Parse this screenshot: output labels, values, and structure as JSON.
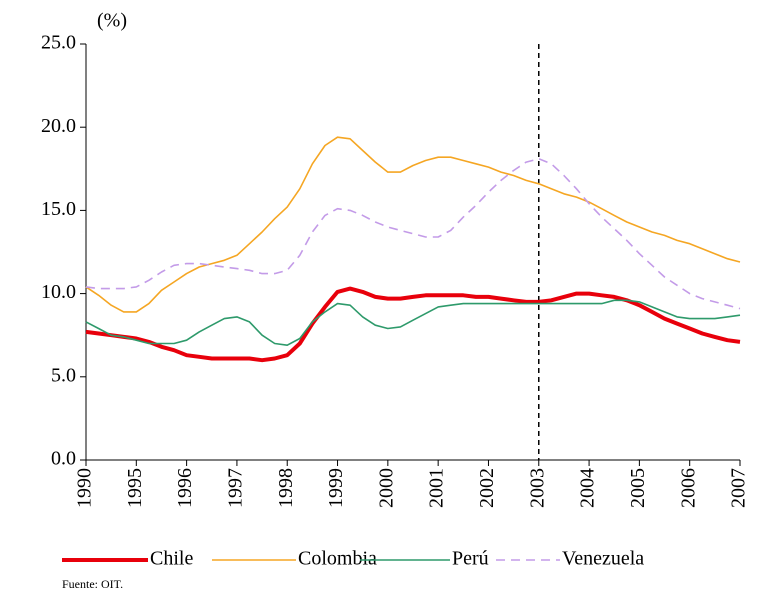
{
  "chart_data": {
    "type": "line",
    "y_label": "(%)",
    "source": "Fuente: OIT.",
    "categories": [
      "1990",
      null,
      null,
      null,
      "1995",
      null,
      null,
      null,
      "1996",
      null,
      null,
      null,
      "1997",
      null,
      null,
      null,
      "1998",
      null,
      null,
      null,
      "1999",
      null,
      null,
      null,
      "2000",
      null,
      null,
      null,
      "2001",
      null,
      null,
      null,
      "2002",
      null,
      null,
      null,
      "2003",
      null,
      null,
      null,
      "2004",
      null,
      null,
      null,
      "2005",
      null,
      null,
      null,
      "2006",
      null,
      null,
      null,
      "2007"
    ],
    "series": [
      {
        "name": "Chile",
        "color": "#e8000b",
        "width": 4,
        "dash": false,
        "values": [
          7.7,
          7.6,
          7.5,
          7.4,
          7.3,
          7.1,
          6.8,
          6.6,
          6.3,
          6.2,
          6.1,
          6.1,
          6.1,
          6.1,
          6.0,
          6.1,
          6.3,
          7.0,
          8.2,
          9.2,
          10.1,
          10.3,
          10.1,
          9.8,
          9.7,
          9.7,
          9.8,
          9.9,
          9.9,
          9.9,
          9.9,
          9.8,
          9.8,
          9.7,
          9.6,
          9.5,
          9.5,
          9.6,
          9.8,
          10.0,
          10.0,
          9.9,
          9.8,
          9.6,
          9.3,
          8.9,
          8.5,
          8.2,
          7.9,
          7.6,
          7.4,
          7.2,
          7.1
        ]
      },
      {
        "name": "Colombia",
        "color": "#f5a623",
        "width": 1.6,
        "dash": false,
        "values": [
          10.4,
          9.9,
          9.3,
          8.9,
          8.9,
          9.4,
          10.2,
          10.7,
          11.2,
          11.6,
          11.8,
          12.0,
          12.3,
          13.0,
          13.7,
          14.5,
          15.2,
          16.3,
          17.8,
          18.9,
          19.4,
          19.3,
          18.6,
          17.9,
          17.3,
          17.3,
          17.7,
          18.0,
          18.2,
          18.2,
          18.0,
          17.8,
          17.6,
          17.3,
          17.1,
          16.8,
          16.6,
          16.3,
          16.0,
          15.8,
          15.5,
          15.1,
          14.7,
          14.3,
          14.0,
          13.7,
          13.5,
          13.2,
          13.0,
          12.7,
          12.4,
          12.1,
          11.9
        ]
      },
      {
        "name": "Perú",
        "color": "#2e9a6b",
        "width": 1.6,
        "dash": false,
        "values": [
          8.3,
          7.9,
          7.5,
          7.4,
          7.2,
          7.0,
          7.0,
          7.0,
          7.2,
          7.7,
          8.1,
          8.5,
          8.6,
          8.3,
          7.5,
          7.0,
          6.9,
          7.3,
          8.3,
          8.9,
          9.4,
          9.3,
          8.6,
          8.1,
          7.9,
          8.0,
          8.4,
          8.8,
          9.2,
          9.3,
          9.4,
          9.4,
          9.4,
          9.4,
          9.4,
          9.4,
          9.4,
          9.4,
          9.4,
          9.4,
          9.4,
          9.4,
          9.6,
          9.6,
          9.5,
          9.2,
          8.9,
          8.6,
          8.5,
          8.5,
          8.5,
          8.6,
          8.7
        ]
      },
      {
        "name": "Venezuela",
        "color": "#c39be8",
        "width": 1.6,
        "dash": true,
        "values": [
          10.4,
          10.3,
          10.3,
          10.3,
          10.4,
          10.8,
          11.3,
          11.7,
          11.8,
          11.8,
          11.7,
          11.6,
          11.5,
          11.4,
          11.2,
          11.2,
          11.4,
          12.3,
          13.7,
          14.7,
          15.1,
          15.0,
          14.7,
          14.3,
          14.0,
          13.8,
          13.6,
          13.4,
          13.4,
          13.8,
          14.6,
          15.3,
          16.1,
          16.8,
          17.4,
          17.9,
          18.1,
          17.8,
          17.1,
          16.3,
          15.4,
          14.6,
          13.9,
          13.2,
          12.4,
          11.7,
          11.0,
          10.5,
          10.0,
          9.7,
          9.5,
          9.3,
          9.1
        ]
      }
    ],
    "vline": "2003",
    "ylim": [
      0,
      25
    ],
    "yticks": [
      {
        "value": 0,
        "label": "0.0"
      },
      {
        "value": 5,
        "label": "5.0"
      },
      {
        "value": 10,
        "label": "10.0"
      },
      {
        "value": 15,
        "label": "15.0"
      },
      {
        "value": 20,
        "label": "20.0"
      },
      {
        "value": 25,
        "label": "25.0"
      }
    ],
    "legend": "bottom"
  }
}
